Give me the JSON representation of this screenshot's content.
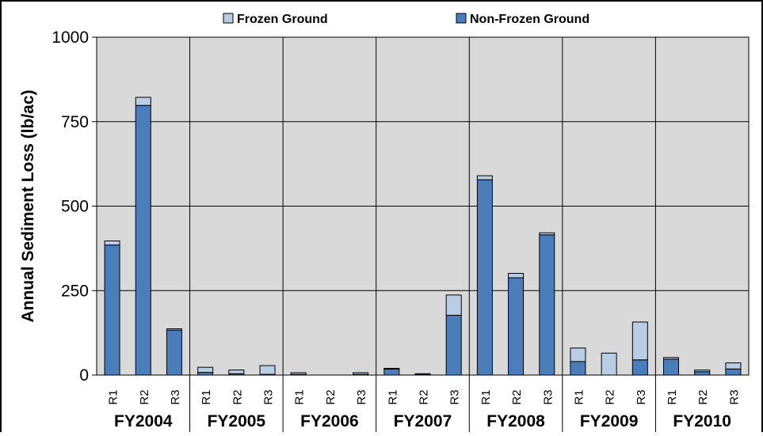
{
  "chart_data": {
    "type": "bar",
    "stacked": true,
    "ylabel": "Annual Sediment Loss (lb/ac)",
    "ylim": [
      0,
      1000
    ],
    "yticks": [
      0,
      250,
      500,
      750,
      1000
    ],
    "grid": true,
    "legend_position": "top",
    "groups": [
      "FY2004",
      "FY2005",
      "FY2006",
      "FY2007",
      "FY2008",
      "FY2009",
      "FY2010"
    ],
    "categories": [
      "R1",
      "R2",
      "R3"
    ],
    "series": [
      {
        "name": "Non-Frozen Ground",
        "color": "#4a7ebb",
        "values": [
          [
            385,
            798,
            133
          ],
          [
            8,
            4,
            2
          ],
          [
            2,
            0,
            2
          ],
          [
            18,
            3,
            177
          ],
          [
            578,
            288,
            415
          ],
          [
            40,
            0,
            45
          ],
          [
            47,
            10,
            18
          ]
        ]
      },
      {
        "name": "Frozen Ground",
        "color": "#b9cde5",
        "values": [
          [
            12,
            24,
            4
          ],
          [
            15,
            11,
            26
          ],
          [
            5,
            0,
            5
          ],
          [
            2,
            1,
            60
          ],
          [
            12,
            13,
            6
          ],
          [
            40,
            65,
            112
          ],
          [
            5,
            5,
            18
          ]
        ]
      }
    ]
  }
}
